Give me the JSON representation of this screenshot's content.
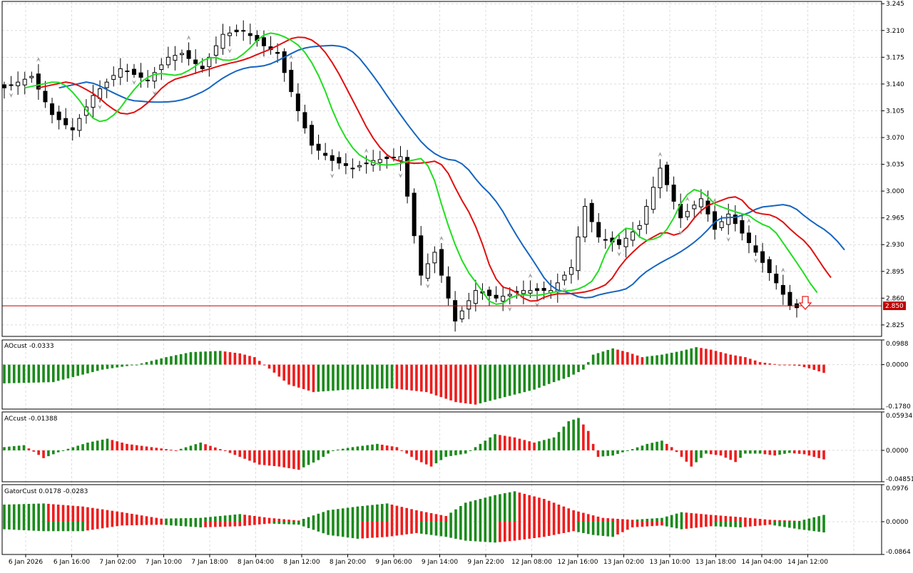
{
  "colors": {
    "background": "#ffffff",
    "grid": "#dcdcdc",
    "candle_bull_fill": "#ffffff",
    "candle_bear_fill": "#000000",
    "candle_outline": "#000000",
    "ma_blue": "#1565c0",
    "ma_red": "#e01010",
    "ma_green": "#22dd22",
    "fractal": "#a0a0a0",
    "bar_up": "#1b8a1b",
    "bar_down": "#ee1c1c",
    "price_line": "#c00000",
    "price_tag_bg": "#c00000",
    "price_tag_text": "#ffffff",
    "arrow": "#ee1c1c"
  },
  "chart_data": [
    {
      "type": "candlestick",
      "title": "",
      "x_labels": [
        "6 Jan 2026",
        "6 Jan 16:00",
        "7 Jan 02:00",
        "7 Jan 10:00",
        "7 Jan 18:00",
        "8 Jan 04:00",
        "8 Jan 12:00",
        "8 Jan 20:00",
        "9 Jan 06:00",
        "9 Jan 14:00",
        "9 Jan 22:00",
        "12 Jan 08:00",
        "12 Jan 16:00",
        "13 Jan 02:00",
        "13 Jan 10:00",
        "13 Jan 18:00",
        "14 Jan 04:00",
        "14 Jan 12:00"
      ],
      "y_ticks": [
        "3.245",
        "3.210",
        "3.175",
        "3.140",
        "3.105",
        "3.070",
        "3.035",
        "3.000",
        "2.965",
        "2.930",
        "2.895",
        "2.860",
        "2.825"
      ],
      "ylim": [
        2.81,
        3.248
      ],
      "current_price": 2.85,
      "current_price_label": "2.850",
      "signal": "down-arrow",
      "close_anchors": [
        [
          0,
          3.135
        ],
        [
          4,
          3.15
        ],
        [
          7,
          3.1
        ],
        [
          10,
          3.08
        ],
        [
          13,
          3.125
        ],
        [
          17,
          3.16
        ],
        [
          21,
          3.145
        ],
        [
          24,
          3.175
        ],
        [
          26,
          3.18
        ],
        [
          29,
          3.16
        ],
        [
          32,
          3.205
        ],
        [
          35,
          3.21
        ],
        [
          38,
          3.19
        ],
        [
          40,
          3.18
        ],
        [
          43,
          3.105
        ],
        [
          45,
          3.06
        ],
        [
          48,
          3.04
        ],
        [
          51,
          3.03
        ],
        [
          54,
          3.04
        ],
        [
          58,
          3.045
        ],
        [
          61,
          2.89
        ],
        [
          63,
          2.92
        ],
        [
          66,
          2.83
        ],
        [
          69,
          2.87
        ],
        [
          72,
          2.86
        ],
        [
          76,
          2.87
        ],
        [
          80,
          2.87
        ],
        [
          83,
          2.9
        ],
        [
          85,
          2.98
        ],
        [
          87,
          2.94
        ],
        [
          90,
          2.93
        ],
        [
          93,
          2.955
        ],
        [
          96,
          3.03
        ],
        [
          99,
          2.965
        ],
        [
          102,
          2.99
        ],
        [
          104,
          2.95
        ],
        [
          106,
          2.97
        ],
        [
          110,
          2.92
        ],
        [
          113,
          2.88
        ],
        [
          115,
          2.85
        ]
      ],
      "fractals_up": [
        5,
        27,
        42,
        53,
        64,
        77,
        96,
        100,
        104,
        109,
        114
      ],
      "fractals_down": [
        1,
        14,
        19,
        22,
        33,
        48,
        58,
        62,
        74,
        78,
        82,
        90,
        99,
        106,
        110
      ]
    },
    {
      "type": "bar",
      "title": "AOcust -0.0333",
      "y_ticks": [
        "0.0988",
        "0.0000",
        "-0.1780"
      ],
      "ylim": [
        -0.178,
        0.0988
      ],
      "anchors": [
        [
          0,
          -0.075
        ],
        [
          10,
          -0.07
        ],
        [
          20,
          -0.02
        ],
        [
          27,
          0.0
        ],
        [
          33,
          0.03
        ],
        [
          38,
          0.05
        ],
        [
          44,
          0.055
        ],
        [
          48,
          0.045
        ],
        [
          51,
          0.03
        ],
        [
          53,
          0.0
        ],
        [
          58,
          -0.08
        ],
        [
          63,
          -0.11
        ],
        [
          70,
          -0.1
        ],
        [
          79,
          -0.095
        ],
        [
          86,
          -0.11
        ],
        [
          92,
          -0.15
        ],
        [
          96,
          -0.16
        ],
        [
          100,
          -0.14
        ],
        [
          108,
          -0.1
        ],
        [
          112,
          -0.07
        ],
        [
          115,
          -0.05
        ],
        [
          118,
          -0.02
        ],
        [
          120,
          0.04
        ],
        [
          124,
          0.065
        ],
        [
          127,
          0.05
        ],
        [
          130,
          0.03
        ],
        [
          134,
          0.04
        ],
        [
          138,
          0.055
        ],
        [
          141,
          0.07
        ],
        [
          144,
          0.06
        ],
        [
          148,
          0.04
        ],
        [
          151,
          0.03
        ],
        [
          154,
          0.01
        ],
        [
          158,
          0.0
        ],
        [
          162,
          -0.005
        ],
        [
          164,
          -0.015
        ],
        [
          167,
          -0.033
        ]
      ]
    },
    {
      "type": "bar",
      "title": "ACcust -0.01388",
      "y_ticks": [
        "0.05934",
        "0.0000",
        "-0.04851"
      ],
      "ylim": [
        -0.04851,
        0.05934
      ],
      "anchors": [
        [
          0,
          0.005
        ],
        [
          4,
          0.008
        ],
        [
          8,
          -0.012
        ],
        [
          12,
          0.0
        ],
        [
          17,
          0.012
        ],
        [
          21,
          0.018
        ],
        [
          25,
          0.01
        ],
        [
          30,
          0.005
        ],
        [
          35,
          0.0
        ],
        [
          40,
          0.012
        ],
        [
          44,
          0.002
        ],
        [
          48,
          -0.01
        ],
        [
          52,
          -0.022
        ],
        [
          56,
          -0.025
        ],
        [
          60,
          -0.03
        ],
        [
          64,
          -0.015
        ],
        [
          67,
          0.0
        ],
        [
          71,
          0.005
        ],
        [
          76,
          0.01
        ],
        [
          80,
          0.005
        ],
        [
          84,
          -0.015
        ],
        [
          87,
          -0.025
        ],
        [
          90,
          -0.01
        ],
        [
          94,
          -0.005
        ],
        [
          97,
          0.01
        ],
        [
          100,
          0.025
        ],
        [
          104,
          0.02
        ],
        [
          108,
          0.012
        ],
        [
          112,
          0.02
        ],
        [
          115,
          0.045
        ],
        [
          117,
          0.05
        ],
        [
          119,
          0.03
        ],
        [
          121,
          -0.01
        ],
        [
          124,
          -0.008
        ],
        [
          128,
          0.002
        ],
        [
          131,
          0.01
        ],
        [
          134,
          0.015
        ],
        [
          136,
          0.005
        ],
        [
          138,
          -0.01
        ],
        [
          140,
          -0.025
        ],
        [
          143,
          -0.005
        ],
        [
          146,
          -0.008
        ],
        [
          149,
          -0.018
        ],
        [
          151,
          -0.005
        ],
        [
          154,
          -0.005
        ],
        [
          157,
          -0.008
        ],
        [
          160,
          -0.004
        ],
        [
          163,
          -0.006
        ],
        [
          167,
          -0.014
        ]
      ]
    },
    {
      "type": "histogram",
      "title": "GatorCust 0.0178 -0.0283",
      "y_ticks": [
        "0.0976",
        "0.0000",
        "-0.0864"
      ],
      "ylim": [
        -0.0864,
        0.0976
      ],
      "upper_anchors": [
        [
          0,
          0.045
        ],
        [
          8,
          0.048
        ],
        [
          16,
          0.04
        ],
        [
          24,
          0.025
        ],
        [
          32,
          0.008
        ],
        [
          40,
          0.01
        ],
        [
          48,
          0.02
        ],
        [
          54,
          0.01
        ],
        [
          60,
          0.003
        ],
        [
          66,
          0.03
        ],
        [
          72,
          0.04
        ],
        [
          78,
          0.048
        ],
        [
          84,
          0.03
        ],
        [
          90,
          0.015
        ],
        [
          94,
          0.05
        ],
        [
          100,
          0.07
        ],
        [
          104,
          0.08
        ],
        [
          110,
          0.06
        ],
        [
          116,
          0.03
        ],
        [
          122,
          0.01
        ],
        [
          128,
          0.005
        ],
        [
          134,
          0.01
        ],
        [
          138,
          0.025
        ],
        [
          144,
          0.018
        ],
        [
          150,
          0.012
        ],
        [
          156,
          0.005
        ],
        [
          162,
          0.002
        ],
        [
          167,
          0.0178
        ]
      ],
      "lower_anchors": [
        [
          0,
          -0.02
        ],
        [
          8,
          -0.025
        ],
        [
          16,
          -0.025
        ],
        [
          24,
          -0.01
        ],
        [
          32,
          -0.008
        ],
        [
          40,
          -0.015
        ],
        [
          48,
          -0.012
        ],
        [
          54,
          -0.005
        ],
        [
          60,
          -0.008
        ],
        [
          66,
          -0.035
        ],
        [
          72,
          -0.045
        ],
        [
          78,
          -0.04
        ],
        [
          84,
          -0.03
        ],
        [
          90,
          -0.04
        ],
        [
          94,
          -0.05
        ],
        [
          100,
          -0.055
        ],
        [
          104,
          -0.05
        ],
        [
          110,
          -0.04
        ],
        [
          116,
          -0.025
        ],
        [
          120,
          -0.035
        ],
        [
          124,
          -0.04
        ],
        [
          128,
          -0.015
        ],
        [
          134,
          -0.01
        ],
        [
          138,
          -0.02
        ],
        [
          144,
          -0.012
        ],
        [
          150,
          -0.015
        ],
        [
          156,
          -0.008
        ],
        [
          162,
          -0.02
        ],
        [
          167,
          -0.0283
        ]
      ]
    }
  ]
}
